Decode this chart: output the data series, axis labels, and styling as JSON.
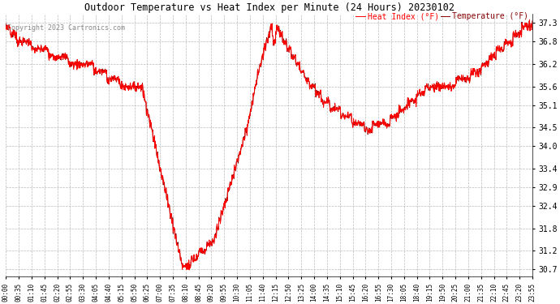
{
  "title": "Outdoor Temperature vs Heat Index per Minute (24 Hours) 20230102",
  "copyright": "Copyright 2023 Cartronics.com",
  "legend_heat_index": "Heat Index (°F)",
  "legend_temperature": "Temperature (°F)",
  "yticks": [
    30.7,
    31.2,
    31.8,
    32.4,
    32.9,
    33.4,
    34.0,
    34.5,
    35.1,
    35.6,
    36.2,
    36.8,
    37.3
  ],
  "ymin": 30.5,
  "ymax": 37.55,
  "title_color": "#000000",
  "copyright_color": "#888888",
  "heat_index_color": "#ff0000",
  "temperature_color": "#880000",
  "background_color": "#ffffff",
  "grid_color": "#bbbbbb",
  "figwidth": 6.9,
  "figheight": 3.75,
  "dpi": 100,
  "xtick_labels": [
    "00:00",
    "00:35",
    "01:10",
    "01:45",
    "02:20",
    "02:55",
    "03:30",
    "04:05",
    "04:40",
    "05:15",
    "05:50",
    "06:25",
    "07:00",
    "07:35",
    "08:10",
    "08:45",
    "09:20",
    "09:55",
    "10:30",
    "11:05",
    "11:40",
    "12:15",
    "12:50",
    "13:25",
    "14:00",
    "14:35",
    "15:10",
    "15:45",
    "16:20",
    "16:55",
    "17:30",
    "18:05",
    "18:40",
    "19:15",
    "19:50",
    "20:25",
    "21:00",
    "21:35",
    "22:10",
    "22:45",
    "23:20",
    "23:55"
  ]
}
